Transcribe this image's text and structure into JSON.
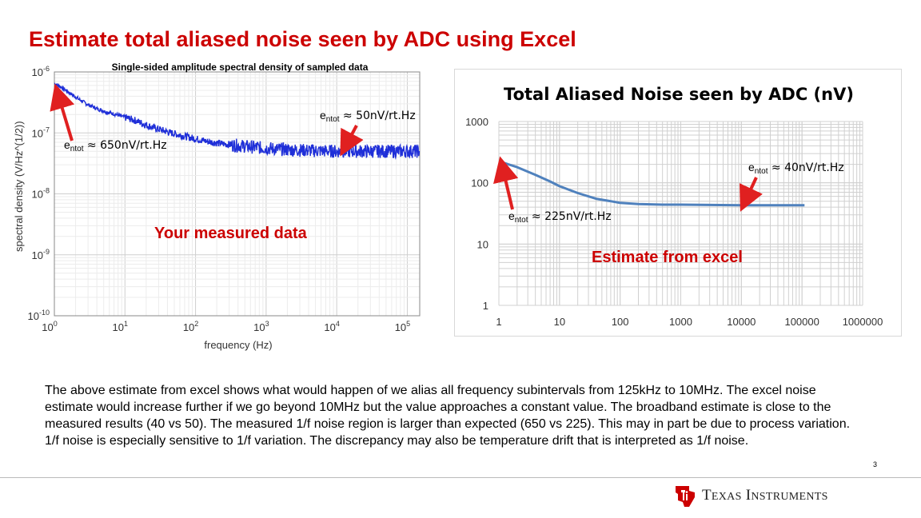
{
  "slide": {
    "title": "Estimate total aliased noise seen by ADC using Excel",
    "page_number": "3",
    "body": "The above estimate from excel shows what would happen of we alias all frequency subintervals from 125kHz to 10MHz.  The excel noise estimate would increase further if we go beyond 10MHz but the value approaches a constant value.  The broadband estimate is close to the measured results (40 vs 50).  The measured 1/f noise region is larger than expected (650 vs 225).  This may in part be due to process variation.  1/f noise is especially sensitive to 1/f variation.  The discrepancy may also be temperature drift that is interpreted as 1/f noise.",
    "logo": {
      "mark": "ti-logo-icon",
      "name_first_big": "T",
      "name_first_rest": "EXAS",
      "name_second_big": "I",
      "name_second_rest": "NSTRUMENTS"
    }
  },
  "annotations": {
    "e_symbol": "e",
    "sub": "ntot",
    "left_high": " ≈ 650nV/rt.Hz",
    "left_low": " ≈ 50nV/rt.Hz",
    "right_high": " ≈ 225nV/rt.Hz",
    "right_low": " ≈ 40nV/rt.Hz",
    "left_callout": "Your measured data",
    "right_callout": "Estimate from excel"
  },
  "colors": {
    "title_red": "#cc0000",
    "measured_blue": "#1f2fd8",
    "excel_blue": "#4f81bd",
    "arrow_red": "#e02020"
  },
  "chart_data": [
    {
      "type": "line",
      "title": "Single-sided amplitude spectral density of sampled data",
      "xlabel": "frequency (Hz)",
      "ylabel": "spectral density (V/Hz^(1/2))",
      "xscale": "log",
      "yscale": "log",
      "xlim": [
        1,
        150000
      ],
      "ylim": [
        1e-10,
        1e-06
      ],
      "xticks": [
        {
          "v": 1,
          "b": "10",
          "e": "0"
        },
        {
          "v": 10,
          "b": "10",
          "e": "1"
        },
        {
          "v": 100,
          "b": "10",
          "e": "2"
        },
        {
          "v": 1000,
          "b": "10",
          "e": "3"
        },
        {
          "v": 10000,
          "b": "10",
          "e": "4"
        },
        {
          "v": 100000,
          "b": "10",
          "e": "5"
        }
      ],
      "yticks": [
        {
          "v": 1e-06,
          "b": "10",
          "e": "-6"
        },
        {
          "v": 1e-07,
          "b": "10",
          "e": "-7"
        },
        {
          "v": 1e-08,
          "b": "10",
          "e": "-8"
        },
        {
          "v": 1e-09,
          "b": "10",
          "e": "-9"
        },
        {
          "v": 1e-10,
          "b": "10",
          "e": "-10"
        }
      ],
      "grid": true,
      "series": [
        {
          "name": "measured",
          "x": [
            1,
            1.3,
            1.7,
            2.2,
            3,
            4,
            5.5,
            7.5,
            10,
            14,
            20,
            30,
            45,
            70,
            100,
            150,
            250,
            400,
            700,
            1000,
            2000,
            5000,
            10000,
            30000,
            70000,
            150000
          ],
          "y": [
            6.5e-07,
            5.5e-07,
            4.4e-07,
            3.6e-07,
            2.9e-07,
            2.5e-07,
            2.2e-07,
            2e-07,
            1.8e-07,
            1.6e-07,
            1.35e-07,
            1.15e-07,
            1e-07,
            8.8e-08,
            8e-08,
            7.2e-08,
            6.6e-08,
            6.2e-08,
            5.8e-08,
            5.6e-08,
            5.3e-08,
            5.1e-08,
            5e-08,
            5e-08,
            5e-08,
            5e-08
          ]
        }
      ]
    },
    {
      "type": "line",
      "title": "Total Aliased Noise seen by ADC (nV)",
      "xscale": "log",
      "yscale": "log",
      "xlim": [
        1,
        1000000
      ],
      "ylim": [
        1,
        1000
      ],
      "xticks": [
        {
          "v": 1,
          "t": "1"
        },
        {
          "v": 10,
          "t": "10"
        },
        {
          "v": 100,
          "t": "100"
        },
        {
          "v": 1000,
          "t": "1000"
        },
        {
          "v": 10000,
          "t": "10000"
        },
        {
          "v": 100000,
          "t": "100000"
        },
        {
          "v": 1000000,
          "t": "1000000"
        }
      ],
      "yticks": [
        {
          "v": 1,
          "t": "1"
        },
        {
          "v": 10,
          "t": "10"
        },
        {
          "v": 100,
          "t": "100"
        },
        {
          "v": 1000,
          "t": "1000"
        }
      ],
      "grid": true,
      "series": [
        {
          "name": "excel estimate",
          "x": [
            1,
            2,
            4,
            7,
            10,
            20,
            40,
            70,
            100,
            200,
            500,
            1000,
            10000,
            100000,
            110000
          ],
          "y": [
            225,
            180,
            135,
            105,
            88,
            68,
            55,
            50,
            47,
            45,
            44,
            44,
            43,
            43,
            43
          ]
        }
      ]
    }
  ]
}
